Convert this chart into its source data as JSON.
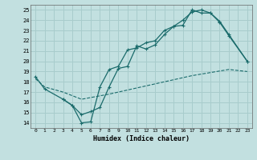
{
  "xlabel": "Humidex (Indice chaleur)",
  "bg_color": "#c2e0e0",
  "line_color": "#1a6b6b",
  "grid_color": "#a8cccc",
  "xlim": [
    -0.5,
    23.5
  ],
  "ylim": [
    13.5,
    25.5
  ],
  "xticks": [
    0,
    1,
    2,
    3,
    4,
    5,
    6,
    7,
    8,
    9,
    10,
    11,
    12,
    13,
    14,
    15,
    16,
    17,
    18,
    19,
    20,
    21,
    22,
    23
  ],
  "yticks": [
    14,
    15,
    16,
    17,
    18,
    19,
    20,
    21,
    22,
    23,
    24,
    25
  ],
  "line1_x": [
    0,
    1,
    3,
    4,
    5,
    6,
    7,
    8,
    9,
    10,
    11,
    12,
    13,
    14,
    15,
    16,
    17,
    18,
    19,
    20,
    21,
    23
  ],
  "line1_y": [
    18.5,
    17.3,
    16.3,
    15.7,
    14.0,
    14.1,
    17.5,
    19.2,
    19.5,
    21.1,
    21.3,
    21.8,
    22.0,
    23.0,
    23.4,
    23.5,
    25.0,
    24.7,
    24.7,
    23.8,
    22.5,
    20.0
  ],
  "line2_x": [
    0,
    1,
    3,
    5,
    8,
    10,
    13,
    15,
    17,
    19,
    21,
    23
  ],
  "line2_y": [
    18.3,
    17.5,
    17.0,
    16.3,
    16.8,
    17.2,
    17.8,
    18.2,
    18.6,
    18.9,
    19.2,
    19.0
  ],
  "line3_x": [
    3,
    4,
    5,
    6,
    7,
    8,
    9,
    10,
    11,
    12,
    13,
    14,
    15,
    16,
    17,
    18,
    19,
    20,
    21,
    23
  ],
  "line3_y": [
    16.3,
    15.7,
    14.8,
    15.1,
    15.5,
    17.5,
    19.3,
    19.5,
    21.5,
    21.2,
    21.6,
    22.6,
    23.4,
    24.0,
    24.8,
    25.0,
    24.7,
    23.9,
    22.6,
    20.0
  ]
}
